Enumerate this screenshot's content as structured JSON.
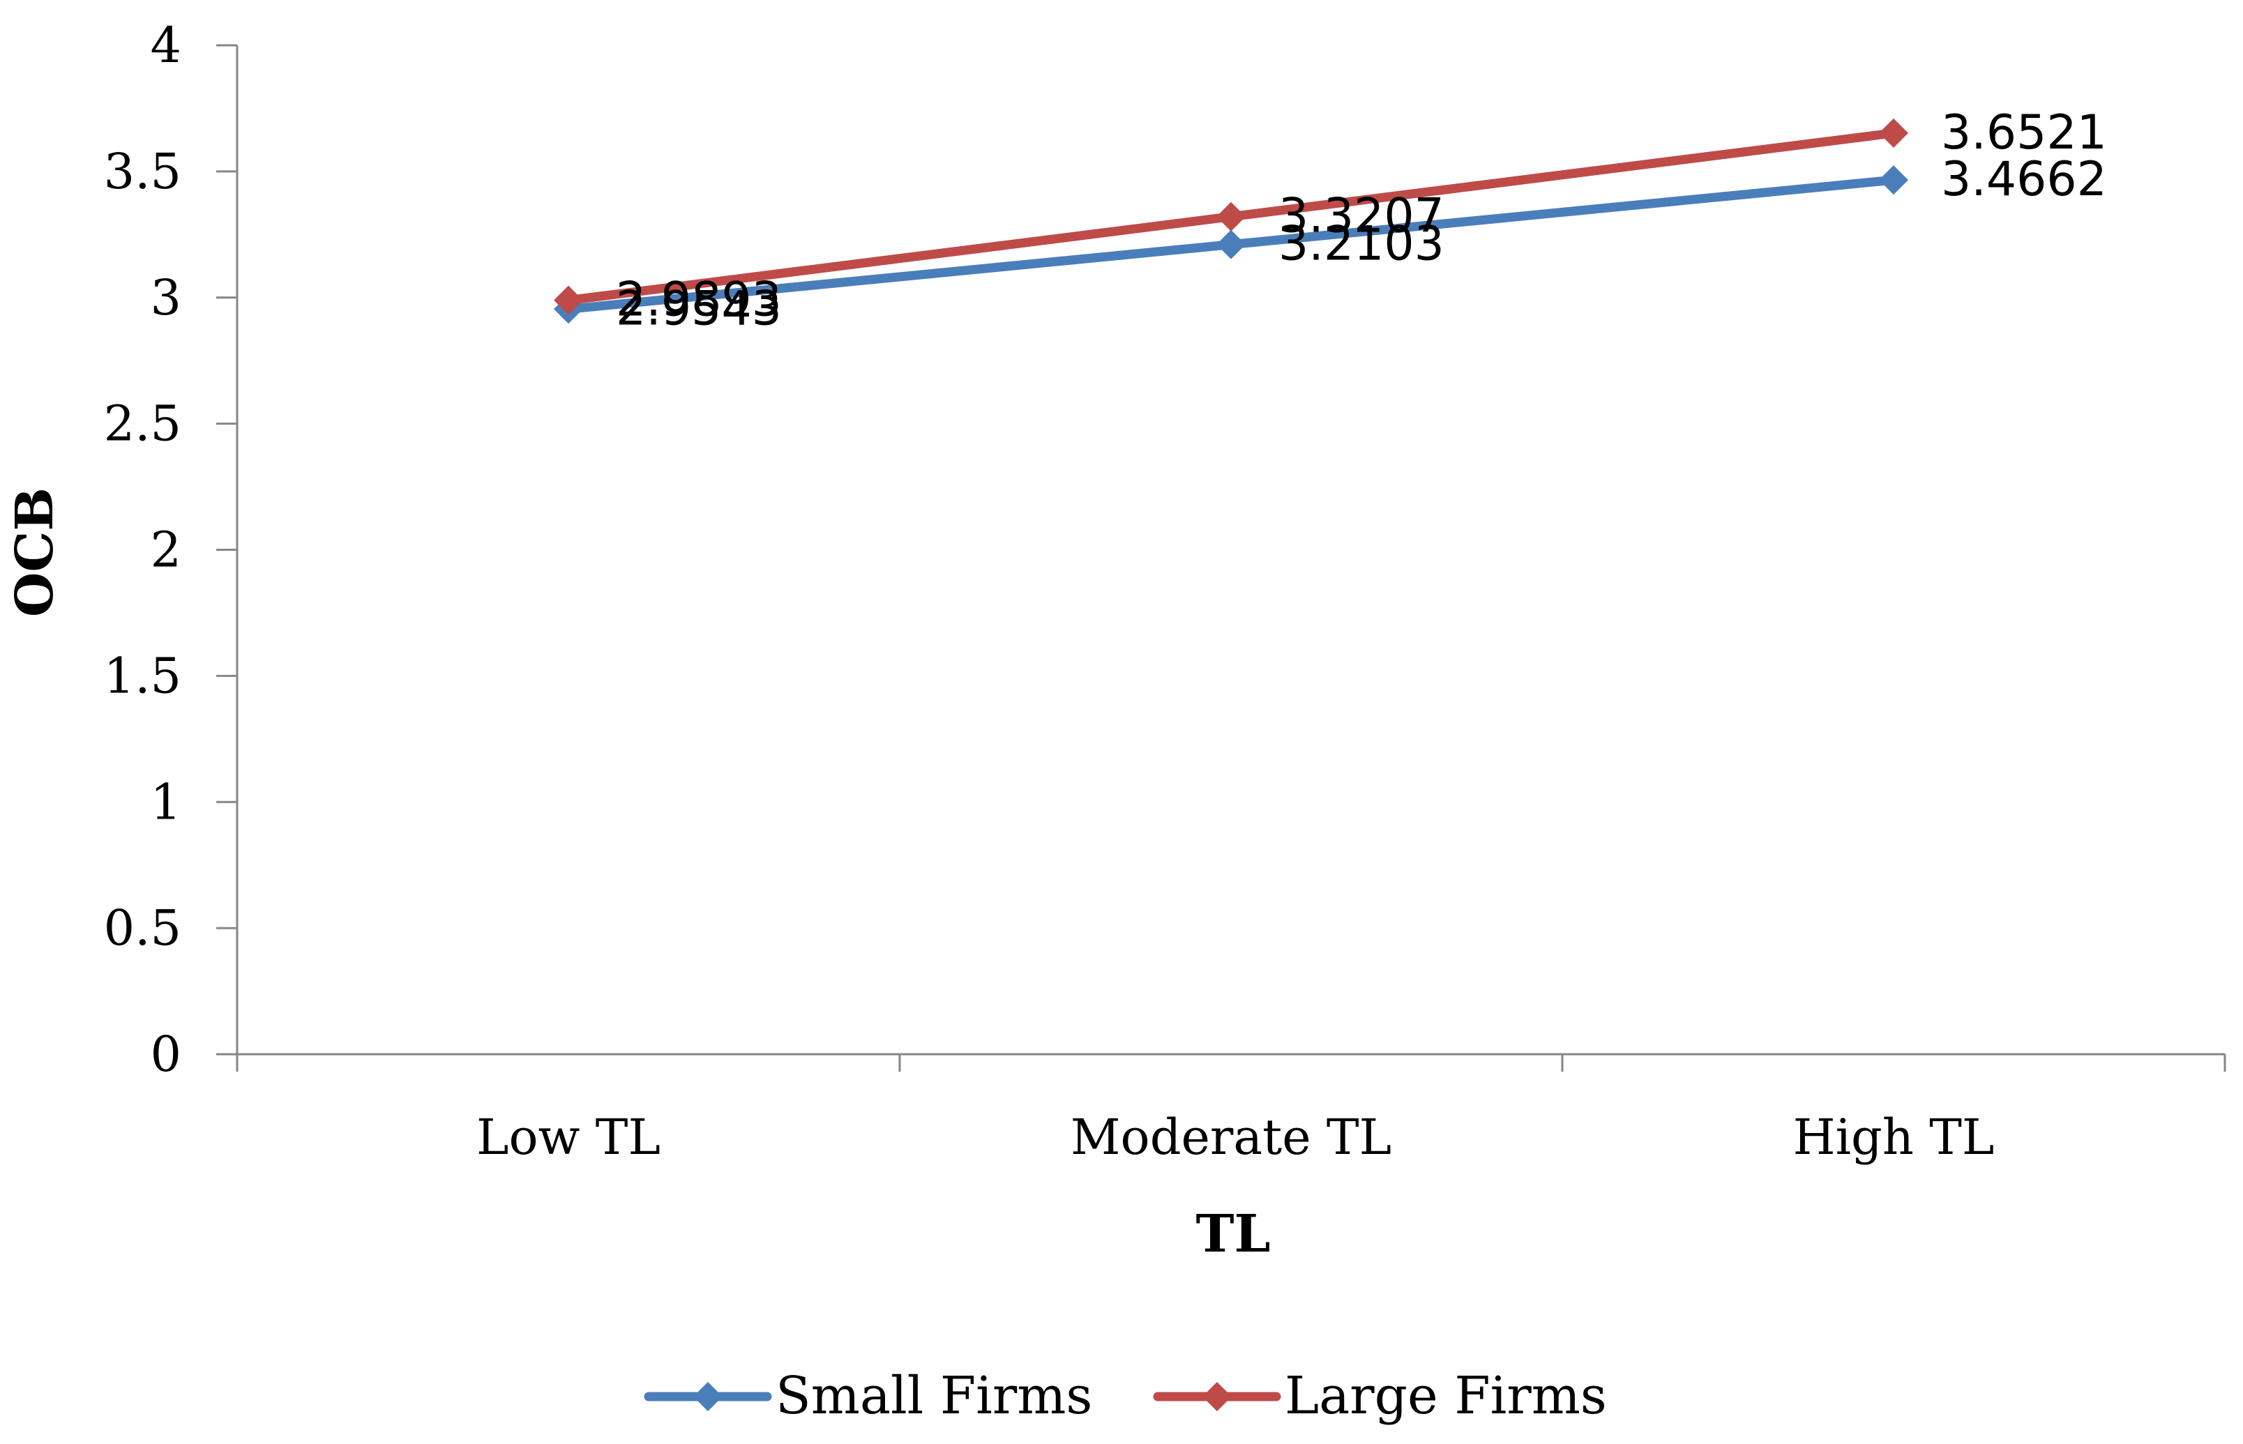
{
  "chart_data": {
    "type": "line",
    "title": "",
    "xlabel": "TL",
    "ylabel": "OCB",
    "categories": [
      "Low TL",
      "Moderate TL",
      "High TL"
    ],
    "ylim": [
      0,
      4
    ],
    "yticks": [
      0,
      0.5,
      1,
      1.5,
      2,
      2.5,
      3,
      3.5,
      4
    ],
    "ytick_labels": [
      "0",
      "0.5",
      "1",
      "1.5",
      "2",
      "2.5",
      "3",
      "3.5",
      "4"
    ],
    "grid": false,
    "legend_position": "bottom",
    "series": [
      {
        "name": "Small Firms",
        "color": "#4a7ebb",
        "marker": "diamond",
        "values": [
          2.9543,
          3.2103,
          3.4662
        ],
        "labels": [
          "2.9543",
          "3.2103",
          "3.4662"
        ]
      },
      {
        "name": "Large Firms",
        "color": "#be4b48",
        "marker": "diamond",
        "values": [
          2.9893,
          3.3207,
          3.6521
        ],
        "labels": [
          "2.9893",
          "3.3207",
          "3.6521"
        ]
      }
    ]
  }
}
